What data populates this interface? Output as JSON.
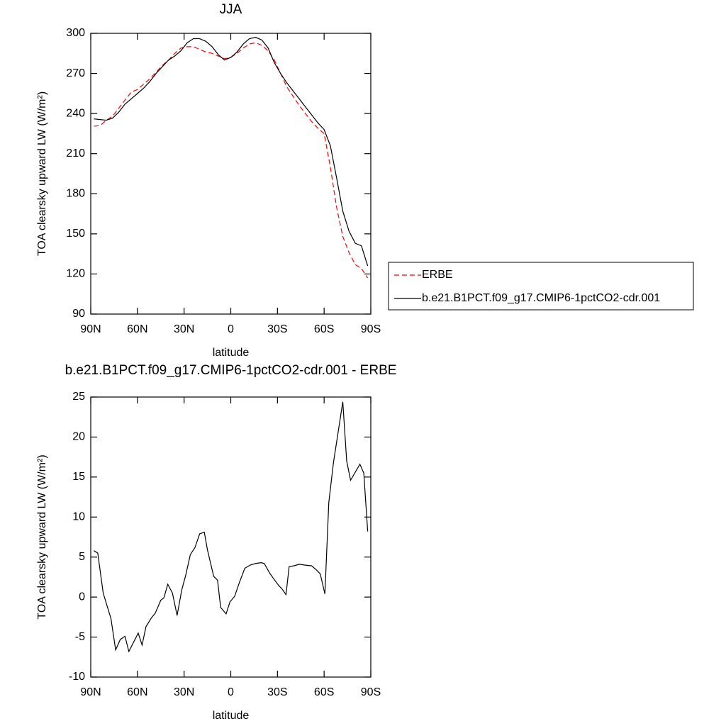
{
  "chart_data": [
    {
      "type": "line",
      "title": "JJA",
      "xlabel": "latitude",
      "ylabel": "TOA clearsky upward LW (W/m²)",
      "x": [
        88,
        84,
        80,
        76,
        72,
        68,
        64,
        60,
        56,
        52,
        48,
        44,
        40,
        36,
        32,
        28,
        24,
        20,
        16,
        12,
        8,
        4,
        0,
        -4,
        -8,
        -12,
        -16,
        -20,
        -24,
        -28,
        -32,
        -36,
        -40,
        -44,
        -48,
        -52,
        -56,
        -60,
        -64,
        -68,
        -72,
        -76,
        -80,
        -84,
        -88
      ],
      "series": [
        {
          "name": "ERBE",
          "color": "#ff0000",
          "dashed": true,
          "values": [
            230.5,
            231,
            235,
            238,
            244,
            250,
            256,
            258,
            262,
            266,
            271,
            276,
            280,
            285,
            289,
            290,
            290,
            288,
            286,
            285,
            283,
            281,
            282,
            285,
            289,
            292,
            293,
            291,
            287,
            280,
            270,
            260,
            253,
            246,
            240,
            234,
            229,
            225,
            200,
            170,
            148,
            136,
            127,
            124,
            117
          ]
        },
        {
          "name": "b.e21.B1PCT.f09_g17.CMIP6-1pctCO2-cdr.001",
          "color": "#000000",
          "dashed": false,
          "values": [
            236,
            235.5,
            235,
            236.5,
            241,
            247,
            251,
            255,
            259,
            264,
            270,
            275,
            280,
            283,
            287,
            293,
            296,
            296,
            294,
            290,
            284,
            280,
            282,
            286,
            292,
            296,
            297,
            295,
            289,
            278,
            270,
            263,
            257,
            251,
            245,
            239,
            233,
            228,
            216,
            192,
            167,
            152,
            143,
            141,
            126
          ]
        }
      ],
      "xlim": [
        90,
        -90
      ],
      "xticks": [
        {
          "value": 90,
          "label": "90N"
        },
        {
          "value": 60,
          "label": "60N"
        },
        {
          "value": 30,
          "label": "30N"
        },
        0,
        {
          "value": -30,
          "label": "30S"
        },
        {
          "value": -60,
          "label": "60S"
        },
        {
          "value": -90,
          "label": "90S"
        }
      ],
      "ylim": [
        90,
        300
      ],
      "yticks": [
        90,
        120,
        150,
        180,
        210,
        240,
        270,
        300
      ],
      "legend": "right"
    },
    {
      "type": "line",
      "title": "b.e21.B1PCT.f09_g17.CMIP6-1pctCO2-cdr.001 - ERBE",
      "xlabel": "latitude",
      "ylabel": "TOA clearsky upward LW (W/m²)",
      "x": [
        88,
        85.5,
        82,
        77,
        74,
        71,
        68,
        65.5,
        59.5,
        57,
        54.5,
        51,
        48.5,
        45,
        43,
        40.5,
        37.5,
        34.5,
        31.5,
        29,
        26,
        23,
        20,
        17,
        15,
        11,
        8.5,
        6.5,
        3,
        0.5,
        -2.5,
        -5.5,
        -9,
        -12.5,
        -16,
        -19.5,
        -21.5,
        -25,
        -27.5,
        -31,
        -33,
        -35.5,
        -37.5,
        -40.5,
        -44,
        -47.5,
        -52,
        -55,
        -57.5,
        -60.5,
        -63,
        -66,
        -72,
        -74.5,
        -77,
        -83,
        -85.5,
        -88
      ],
      "values": [
        5.8,
        5.5,
        0.5,
        -2.7,
        -6.6,
        -5.3,
        -4.9,
        -6.8,
        -4.5,
        -6.0,
        -3.7,
        -2.6,
        -2.0,
        -0.4,
        -0.1,
        1.6,
        0.5,
        -2.3,
        0.9,
        2.7,
        5.3,
        6.2,
        7.9,
        8.1,
        5.9,
        2.6,
        2.1,
        -1.3,
        -2.1,
        -0.6,
        0.1,
        1.8,
        3.6,
        4.0,
        4.2,
        4.3,
        4.2,
        3.0,
        2.3,
        1.4,
        1.0,
        0.3,
        3.8,
        3.9,
        4.1,
        4.0,
        3.9,
        3.4,
        2.9,
        0.4,
        11.8,
        16.8,
        24.4,
        17.0,
        14.6,
        16.6,
        15.5,
        8.2
      ],
      "color": "#000000",
      "xlim": [
        90,
        -90
      ],
      "xticks": [
        {
          "value": 90,
          "label": "90N"
        },
        {
          "value": 60,
          "label": "60N"
        },
        {
          "value": 30,
          "label": "30N"
        },
        0,
        {
          "value": -30,
          "label": "30S"
        },
        {
          "value": -60,
          "label": "60S"
        },
        {
          "value": -90,
          "label": "90S"
        }
      ],
      "ylim": [
        -10,
        25
      ],
      "yticks": [
        -10,
        -5,
        0,
        5,
        10,
        15,
        20,
        25
      ]
    }
  ]
}
